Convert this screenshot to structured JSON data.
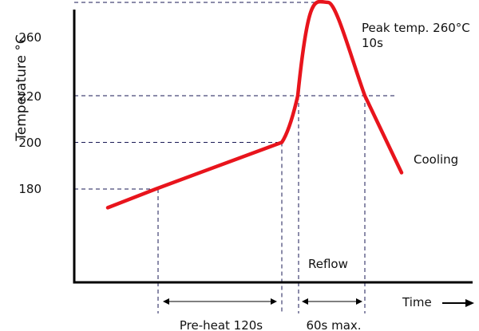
{
  "chart_data": {
    "type": "line",
    "title": "",
    "xlabel": "Time",
    "ylabel": "Temperature °C",
    "y_ticks": [
      "260",
      "220",
      "200",
      "180"
    ],
    "grid": false,
    "legend": "none",
    "series": [
      {
        "name": "",
        "color": "#e8141c",
        "x": [
          0,
          60,
          218,
          238,
          270,
          282,
          322,
          368
        ],
        "y": [
          172,
          180,
          200,
          220,
          260,
          260,
          220,
          187
        ]
      }
    ],
    "reference_lines": [
      {
        "value": 260,
        "axis": "y",
        "style": "dashed"
      },
      {
        "value": 220,
        "axis": "y",
        "style": "dashed"
      },
      {
        "value": 200,
        "axis": "y",
        "style": "dashed"
      },
      {
        "value": 180,
        "axis": "y",
        "style": "dashed"
      }
    ],
    "annotations": {
      "peak": "Peak temp. 260°C",
      "peak_time": "10s",
      "cooling": "Cooling",
      "reflow": "Reflow",
      "preheat": "Pre-heat 120s",
      "reflow_time": "60s max."
    }
  }
}
